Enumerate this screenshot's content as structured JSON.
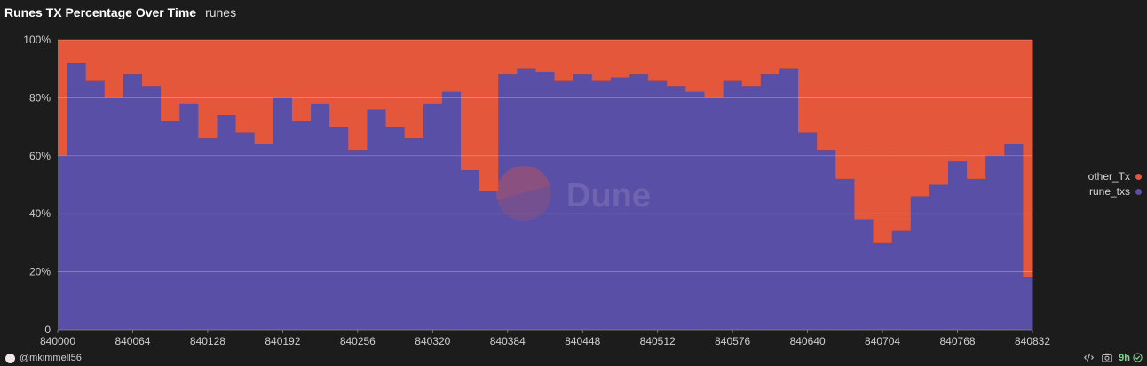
{
  "header": {
    "title": "Runes TX Percentage Over Time",
    "subtitle": "runes"
  },
  "watermark": {
    "text": "Dune"
  },
  "legend": {
    "items": [
      {
        "label": "other_Tx",
        "color": "#e4573a"
      },
      {
        "label": "rune_txs",
        "color": "#5a4fa6"
      }
    ]
  },
  "footer": {
    "author": "@mkimmell56",
    "age": "9h"
  },
  "icons": {
    "author": "user-avatar-icon",
    "embed": "embed-icon",
    "screenshot": "camera-icon",
    "refresh_status": "check-circle-icon"
  },
  "chart_data": {
    "type": "bar",
    "stacked": true,
    "x_range": [
      840000,
      840832
    ],
    "x_ticks": [
      "840000",
      "840064",
      "840128",
      "840192",
      "840256",
      "840320",
      "840384",
      "840448",
      "840512",
      "840576",
      "840640",
      "840704",
      "840768",
      "840832"
    ],
    "y_ticks": [
      "0",
      "20%",
      "40%",
      "60%",
      "80%",
      "100%"
    ],
    "ylim": [
      0,
      100
    ],
    "grid": true,
    "legend_position": "right",
    "series": [
      {
        "name": "rune_txs",
        "color": "#5a4fa6",
        "sample_x": [
          840000,
          840016,
          840032,
          840048,
          840064,
          840080,
          840096,
          840112,
          840128,
          840144,
          840160,
          840176,
          840192,
          840208,
          840224,
          840240,
          840256,
          840272,
          840288,
          840304,
          840320,
          840336,
          840352,
          840368,
          840384,
          840400,
          840416,
          840432,
          840448,
          840464,
          840480,
          840496,
          840512,
          840528,
          840544,
          840560,
          840576,
          840592,
          840608,
          840624,
          840640,
          840656,
          840672,
          840688,
          840704,
          840720,
          840736,
          840752,
          840768,
          840784,
          840800,
          840816,
          840832
        ],
        "values": [
          60,
          92,
          86,
          80,
          88,
          84,
          72,
          78,
          66,
          74,
          68,
          64,
          80,
          72,
          78,
          70,
          62,
          76,
          70,
          66,
          78,
          82,
          55,
          48,
          88,
          90,
          89,
          86,
          88,
          86,
          87,
          88,
          86,
          84,
          82,
          80,
          86,
          84,
          88,
          90,
          68,
          62,
          52,
          38,
          30,
          34,
          46,
          50,
          58,
          52,
          60,
          64,
          18
        ]
      },
      {
        "name": "other_Tx",
        "color": "#e4573a",
        "sample_x": [
          840000,
          840016,
          840032,
          840048,
          840064,
          840080,
          840096,
          840112,
          840128,
          840144,
          840160,
          840176,
          840192,
          840208,
          840224,
          840240,
          840256,
          840272,
          840288,
          840304,
          840320,
          840336,
          840352,
          840368,
          840384,
          840400,
          840416,
          840432,
          840448,
          840464,
          840480,
          840496,
          840512,
          840528,
          840544,
          840560,
          840576,
          840592,
          840608,
          840624,
          840640,
          840656,
          840672,
          840688,
          840704,
          840720,
          840736,
          840752,
          840768,
          840784,
          840800,
          840816,
          840832
        ],
        "values": [
          40,
          8,
          14,
          20,
          12,
          16,
          28,
          22,
          34,
          26,
          32,
          36,
          20,
          28,
          22,
          30,
          38,
          24,
          30,
          34,
          22,
          18,
          45,
          52,
          12,
          10,
          11,
          14,
          12,
          14,
          13,
          12,
          14,
          16,
          18,
          20,
          14,
          16,
          12,
          10,
          32,
          38,
          48,
          62,
          70,
          66,
          54,
          50,
          42,
          48,
          40,
          36,
          82
        ]
      }
    ]
  }
}
